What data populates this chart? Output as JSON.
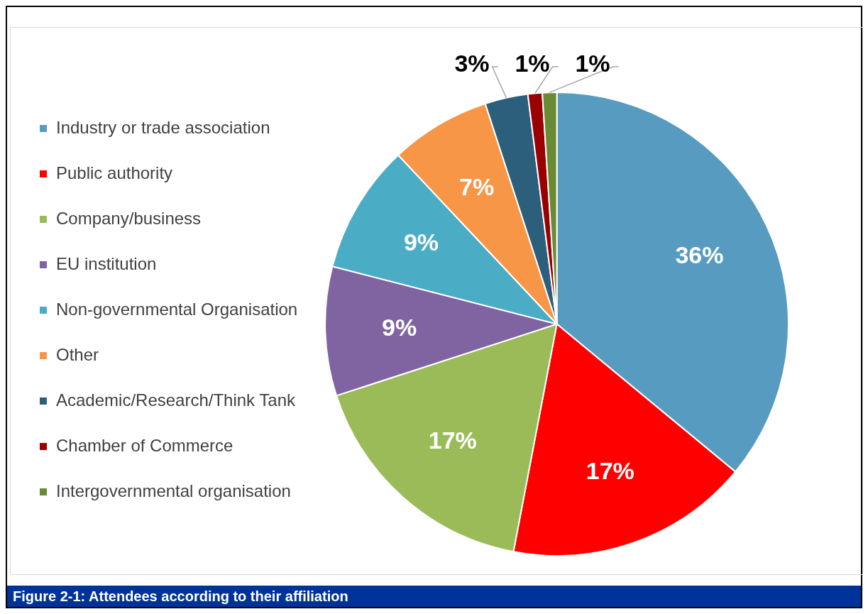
{
  "chart_data": {
    "type": "pie",
    "categories": [
      "Industry or trade association",
      "Public authority",
      "Company/business",
      "EU institution",
      "Non-governmental Organisation",
      "Other",
      "Academic/Research/Think Tank",
      "Chamber of Commerce",
      "Intergovernmental organisation"
    ],
    "values": [
      36,
      17,
      17,
      9,
      9,
      7,
      3,
      1,
      1
    ],
    "colors": [
      "#589bc0",
      "#ff0000",
      "#9bbb59",
      "#8064a2",
      "#4bacc6",
      "#f79646",
      "#2c5f7c",
      "#9b0000",
      "#6a8a34"
    ],
    "value_labels": [
      "36%",
      "17%",
      "17%",
      "9%",
      "9%",
      "7%",
      "3%",
      "1%",
      "1%"
    ],
    "legend": "left",
    "annotations": [
      "Figure 2-1:  Attendees according to their affiliation"
    ]
  }
}
